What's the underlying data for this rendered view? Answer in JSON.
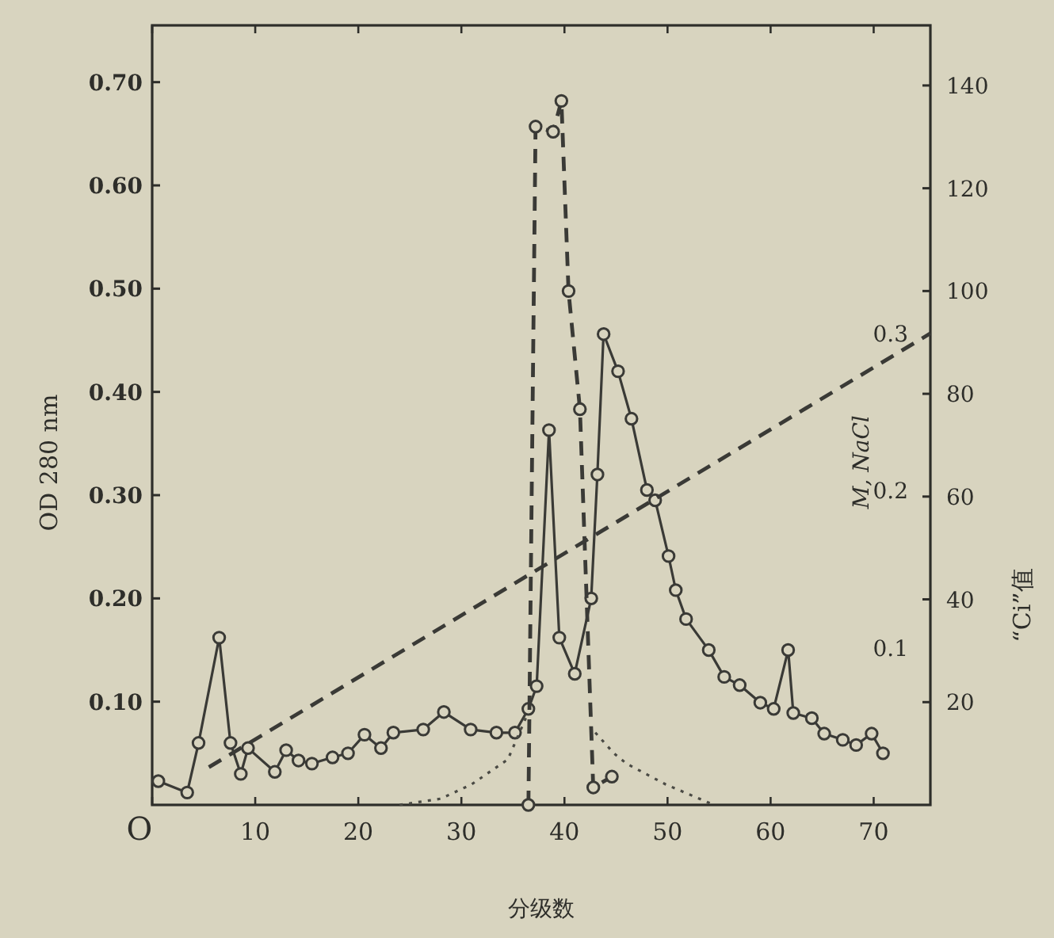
{
  "chart_data": {
    "type": "line",
    "xlabel": "分级数",
    "ylabel": "OD 280 nm",
    "y2label": "“Ci”值",
    "y3label": "M, NaCl",
    "grid": false,
    "xlim": [
      0,
      75.5
    ],
    "xticks": [
      {
        "value": 0,
        "label": "O"
      },
      10,
      20,
      30,
      40,
      50,
      60,
      70
    ],
    "ylim": [
      0,
      0.755
    ],
    "yticks": [
      {
        "value": 0.1,
        "label": "0.10"
      },
      {
        "value": 0.2,
        "label": "0.20"
      },
      {
        "value": 0.3,
        "label": "0.30"
      },
      {
        "value": 0.4,
        "label": "0.40"
      },
      {
        "value": 0.5,
        "label": "0.50"
      },
      {
        "value": 0.6,
        "label": "0.60"
      },
      {
        "value": 0.7,
        "label": "0.70"
      }
    ],
    "y2lim": [
      0,
      151.7
    ],
    "y2ticks": [
      20,
      40,
      60,
      80,
      100,
      120,
      140
    ],
    "y3lim": [
      0,
      0.496
    ],
    "y3ticks": [
      0.1,
      0.2,
      0.3
    ],
    "series": [
      {
        "color": "#3a3a36",
        "line_style": "solid",
        "marker": "circle",
        "x": [
          0.6,
          3.4,
          4.5,
          6.5,
          7.6,
          8.6,
          9.3,
          11.9,
          13,
          14.2,
          15.5,
          17.5,
          19,
          20.6,
          22.2,
          23.4,
          26.3,
          28.3,
          30.9,
          33.4,
          35.2,
          36.5,
          37.3,
          38.5,
          39.5,
          41,
          42.6,
          43.2,
          43.8,
          45.2,
          46.5,
          48,
          48.8,
          50.1,
          50.8,
          51.8,
          54,
          55.5,
          57,
          59,
          60.3,
          61.7,
          62.2,
          64,
          65.2,
          67,
          68.3,
          69.8,
          70.9
        ],
        "values": [
          0.023,
          0.012,
          0.06,
          0.162,
          0.06,
          0.03,
          0.055,
          0.032,
          0.053,
          0.043,
          0.04,
          0.046,
          0.05,
          0.068,
          0.055,
          0.07,
          0.073,
          0.09,
          0.073,
          0.07,
          0.07,
          0.093,
          0.115,
          0.363,
          0.162,
          0.127,
          0.2,
          0.32,
          0.456,
          0.42,
          0.374,
          0.305,
          0.295,
          0.241,
          0.208,
          0.18,
          0.15,
          0.124,
          0.116,
          0.099,
          0.093,
          0.15,
          0.089,
          0.084,
          0.069,
          0.063,
          0.058,
          0.069,
          0.05
        ]
      },
      {
        "color": "#3a3a36",
        "line_style": "dashed",
        "marker": "circle",
        "axis": "y2",
        "x": [
          36.5,
          37.2,
          38.9,
          39.7,
          40.4,
          41.5,
          42.8,
          44.6
        ],
        "values": [
          0,
          132,
          131,
          137,
          100,
          77,
          3.4,
          5.5
        ]
      },
      {
        "color": "#4a4a44",
        "line_style": "dotted",
        "marker": "none",
        "x": [
          24,
          28,
          31,
          34.5,
          36.5
        ],
        "values": [
          0,
          0.006,
          0.02,
          0.044,
          0.09
        ]
      },
      {
        "color": "#4a4a44",
        "line_style": "dotted",
        "marker": "none",
        "x": [
          43,
          44.8,
          46,
          49.8,
          54.5
        ],
        "values": [
          0.07,
          0.05,
          0.04,
          0.02,
          0
        ]
      },
      {
        "color": "#3a3a36",
        "line_style": "dashed",
        "marker": "none",
        "axis": "y3",
        "x": [
          5.5,
          75.5
        ],
        "values": [
          0.024,
          0.3
        ]
      }
    ]
  }
}
